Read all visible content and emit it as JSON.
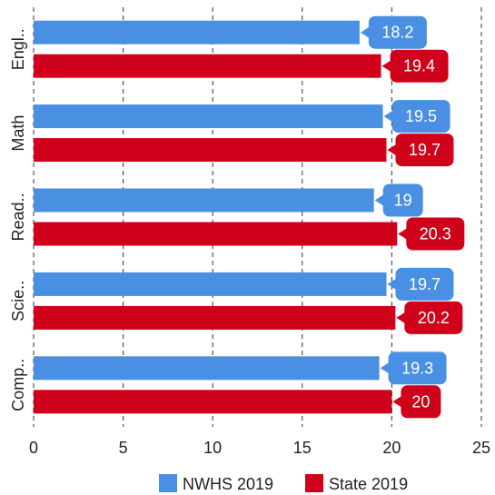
{
  "chart_data": {
    "type": "bar",
    "orientation": "horizontal",
    "categories": [
      "Engl..",
      "Math",
      "Read..",
      "Scie..",
      "Comp.."
    ],
    "series": [
      {
        "name": "NWHS 2019",
        "color": "#4a90e2",
        "values": [
          18.2,
          19.5,
          19,
          19.7,
          19.3
        ],
        "labels": [
          "18.2",
          "19.5",
          "19",
          "19.7",
          "19.3"
        ]
      },
      {
        "name": "State 2019",
        "color": "#d0021b",
        "values": [
          19.4,
          19.7,
          20.3,
          20.2,
          20
        ],
        "labels": [
          "19.4",
          "19.7",
          "20.3",
          "20.2",
          "20"
        ]
      }
    ],
    "xlim": [
      0,
      25
    ],
    "x_ticks": [
      "0",
      "5",
      "10",
      "15",
      "20",
      "25"
    ],
    "grid": "vertical-dashed",
    "legend_position": "bottom"
  }
}
